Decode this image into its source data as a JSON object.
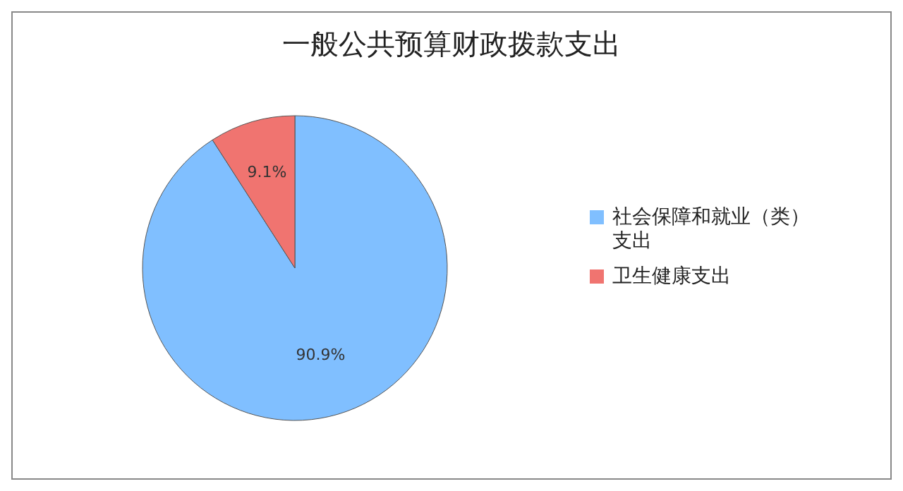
{
  "chart_data": {
    "type": "pie",
    "title": "一般公共预算财政拨款支出",
    "categories": [
      "社会保障和就业（类）支出",
      "卫生健康支出"
    ],
    "values": [
      90.9,
      9.1
    ],
    "colors": [
      "#80bfff",
      "#f07470"
    ],
    "value_labels": [
      "90.9%",
      "9.1%"
    ],
    "legend": "right"
  }
}
